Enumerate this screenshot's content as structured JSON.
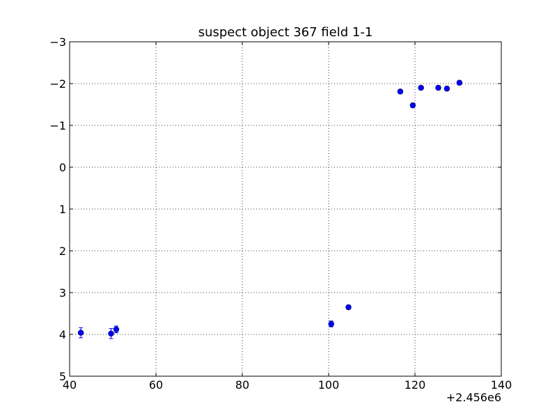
{
  "chart_data": {
    "type": "scatter",
    "title": "suspect object 367 field 1-1",
    "xlabel": "",
    "ylabel": "",
    "x_offset_label": "+2.456e6",
    "xlim": [
      40,
      140
    ],
    "ylim": [
      5,
      -3
    ],
    "y_inverted": true,
    "grid": true,
    "legend": "none",
    "marker_color": "#0000ff",
    "x_ticks": [
      40,
      60,
      80,
      100,
      120,
      140
    ],
    "x_tick_labels": [
      "40",
      "60",
      "80",
      "100",
      "120",
      "140"
    ],
    "y_ticks": [
      -3,
      -2,
      -1,
      0,
      1,
      2,
      3,
      4,
      5
    ],
    "y_tick_labels": [
      "−3",
      "−2",
      "−1",
      "0",
      "1",
      "2",
      "3",
      "4",
      "5"
    ],
    "points": [
      {
        "x": 42.6,
        "y": 3.96,
        "err": 0.12
      },
      {
        "x": 49.6,
        "y": 3.98,
        "err": 0.12
      },
      {
        "x": 50.8,
        "y": 3.88,
        "err": 0.08
      },
      {
        "x": 100.6,
        "y": 3.75,
        "err": 0.07
      },
      {
        "x": 104.6,
        "y": 3.35,
        "err": 0.05
      },
      {
        "x": 116.6,
        "y": -1.81,
        "err": 0.05
      },
      {
        "x": 119.5,
        "y": -1.48,
        "err": 0.05
      },
      {
        "x": 121.4,
        "y": -1.9,
        "err": 0.05
      },
      {
        "x": 125.4,
        "y": -1.9,
        "err": 0.05
      },
      {
        "x": 127.4,
        "y": -1.88,
        "err": 0.05
      },
      {
        "x": 130.3,
        "y": -2.02,
        "err": 0.05
      }
    ]
  }
}
